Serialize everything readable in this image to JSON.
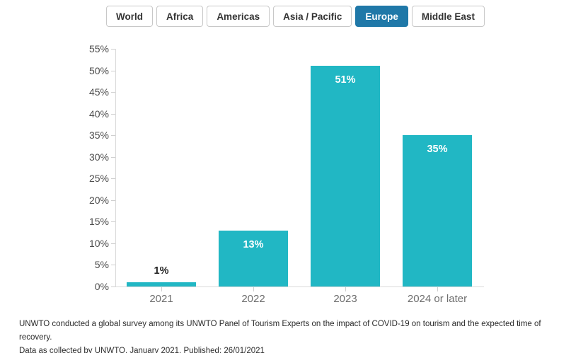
{
  "tabs": {
    "items": [
      {
        "label": "World",
        "selected": false
      },
      {
        "label": "Africa",
        "selected": false
      },
      {
        "label": "Americas",
        "selected": false
      },
      {
        "label": "Asia / Pacific",
        "selected": false
      },
      {
        "label": "Europe",
        "selected": true
      },
      {
        "label": "Middle East",
        "selected": false
      }
    ]
  },
  "chart_data": {
    "type": "bar",
    "title": "",
    "categories": [
      "2021",
      "2022",
      "2023",
      "2024 or later"
    ],
    "values": [
      1,
      13,
      51,
      35
    ],
    "value_labels": [
      "1%",
      "13%",
      "51%",
      "35%"
    ],
    "yticks": [
      "0%",
      "5%",
      "10%",
      "15%",
      "20%",
      "25%",
      "30%",
      "35%",
      "40%",
      "45%",
      "50%",
      "55%"
    ],
    "ylim": [
      0,
      55
    ],
    "xlabel": "",
    "ylabel": "",
    "grid": "off",
    "legend": "none",
    "bar_color": "#21b7c4",
    "label_color_inside": "#ffffff",
    "label_color_outside": "#222222"
  },
  "footer": {
    "line1": "UNWTO conducted a global survey among its UNWTO Panel of Tourism Experts on the impact of COVID-19 on tourism and the expected time of recovery.",
    "line2": "Data as collected by UNWTO, January 2021. Published: 26/01/2021"
  },
  "colors": {
    "tab_selected": "#1f78a8",
    "bar": "#21b7c4",
    "axis": "#d9d9d9",
    "tick": "#cfcfcf"
  }
}
